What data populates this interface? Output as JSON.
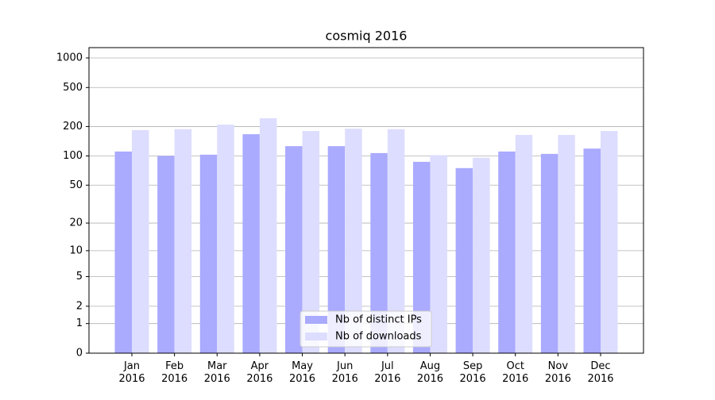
{
  "chart_data": {
    "type": "bar",
    "title": "cosmiq 2016",
    "categories": [
      [
        "Jan",
        "2016"
      ],
      [
        "Feb",
        "2016"
      ],
      [
        "Mar",
        "2016"
      ],
      [
        "Apr",
        "2016"
      ],
      [
        "May",
        "2016"
      ],
      [
        "Jun",
        "2016"
      ],
      [
        "Jul",
        "2016"
      ],
      [
        "Aug",
        "2016"
      ],
      [
        "Sep",
        "2016"
      ],
      [
        "Oct",
        "2016"
      ],
      [
        "Nov",
        "2016"
      ],
      [
        "Dec",
        "2016"
      ]
    ],
    "series": [
      {
        "name": "Nb of distinct IPs",
        "color": "#aaaaff",
        "values": [
          111,
          100,
          103,
          167,
          126,
          126,
          107,
          87,
          75,
          111,
          105,
          119
        ]
      },
      {
        "name": "Nb of downloads",
        "color": "#ddddff",
        "values": [
          184,
          188,
          209,
          243,
          180,
          190,
          188,
          102,
          96,
          164,
          164,
          180
        ]
      }
    ],
    "yscale": "log1p",
    "ylim": [
      0,
      1273
    ],
    "yticks": [
      0,
      1,
      2,
      5,
      10,
      20,
      50,
      100,
      200,
      500,
      1000
    ],
    "grid": true,
    "legend": "lower center"
  }
}
